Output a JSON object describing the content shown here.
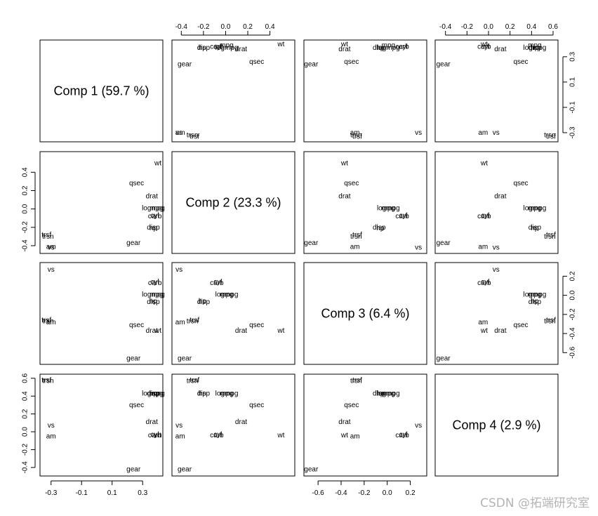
{
  "watermark": "CSDN @拓端研究室",
  "chart_data": {
    "type": "scatter-matrix",
    "diagonal_labels": [
      "Comp 1 (59.7 %)",
      "Comp 2 (23.3 %)",
      "Comp 3 (6.4 %)",
      "Comp 4 (2.9 %)"
    ],
    "axis_ranges": [
      {
        "component": "Comp 1",
        "range": [
          -0.34,
          0.4
        ],
        "ticks": [
          -0.3,
          -0.1,
          0.1,
          0.3
        ],
        "tick_labels": [
          "-0.3",
          "-0.1",
          "0.1",
          "0.3"
        ]
      },
      {
        "component": "Comp 2",
        "range": [
          -0.44,
          0.58
        ],
        "ticks": [
          -0.4,
          -0.2,
          0.0,
          0.2,
          0.4
        ],
        "tick_labels": [
          "-0.4",
          "-0.2",
          "0.0",
          "0.2",
          "0.4"
        ]
      },
      {
        "component": "Comp 3",
        "range": [
          -0.68,
          0.3
        ],
        "ticks": [
          -0.6,
          -0.4,
          -0.2,
          0.0,
          0.2
        ],
        "tick_labels": [
          "-0.6",
          "-0.4",
          "-0.2",
          "0.0",
          "0.2"
        ]
      },
      {
        "component": "Comp 4",
        "range": [
          -0.45,
          0.6
        ],
        "ticks": [
          -0.4,
          -0.2,
          0.0,
          0.2,
          0.4,
          0.6
        ],
        "tick_labels": [
          "-0.4",
          "-0.2",
          "0.0",
          "0.2",
          "0.4",
          "0.6"
        ]
      }
    ],
    "points": [
      {
        "label": "wt",
        "values": [
          0.4,
          0.5,
          -0.37,
          -0.04
        ]
      },
      {
        "label": "qsec",
        "values": [
          0.26,
          0.28,
          -0.31,
          0.3
        ]
      },
      {
        "label": "drat",
        "values": [
          0.36,
          0.14,
          -0.37,
          0.11
        ]
      },
      {
        "label": "logmpg",
        "values": [
          0.37,
          0.01,
          0.01,
          0.43
        ]
      },
      {
        "label": "mpg",
        "values": [
          0.39,
          0.01,
          0.01,
          0.43
        ]
      },
      {
        "label": "disp",
        "values": [
          0.37,
          -0.2,
          -0.07,
          0.43
        ]
      },
      {
        "label": "hp",
        "values": [
          0.37,
          -0.21,
          -0.06,
          0.43
        ]
      },
      {
        "label": "cyl",
        "values": [
          0.38,
          -0.07,
          0.14,
          -0.03
        ]
      },
      {
        "label": "carb",
        "values": [
          0.38,
          -0.08,
          0.13,
          -0.04
        ]
      },
      {
        "label": "gear",
        "values": [
          0.24,
          -0.37,
          -0.66,
          -0.42
        ]
      },
      {
        "label": "am",
        "values": [
          -0.3,
          -0.41,
          -0.28,
          -0.05
        ]
      },
      {
        "label": "vs",
        "values": [
          -0.3,
          -0.42,
          0.27,
          0.07
        ]
      },
      {
        "label": "trsf",
        "values": [
          -0.33,
          -0.28,
          -0.26,
          0.58
        ]
      },
      {
        "label": "trsn",
        "values": [
          -0.32,
          -0.3,
          -0.27,
          0.57
        ]
      }
    ],
    "grid": false,
    "legend": "none"
  }
}
